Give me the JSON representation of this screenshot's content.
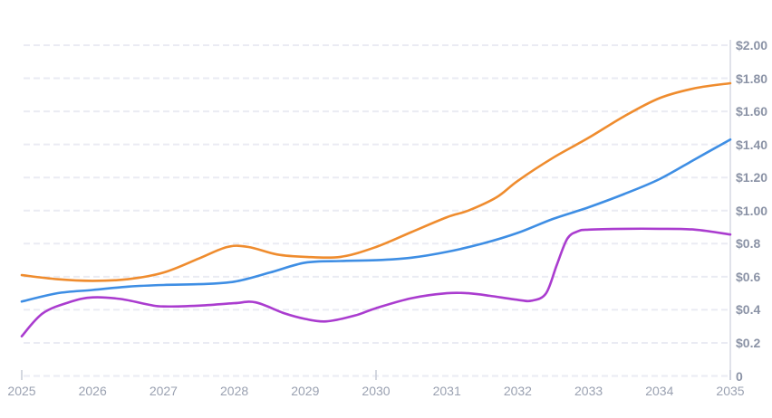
{
  "chart_data": {
    "type": "line",
    "title": "",
    "xlabel": "",
    "ylabel": "",
    "xlim": [
      2025,
      2035
    ],
    "ylim": [
      0,
      2.0
    ],
    "grid": "horizontal-dashed",
    "legend": "none",
    "y_axis_position": "right",
    "x_tick_labels": [
      "2025",
      "2026",
      "2027",
      "2028",
      "2029",
      "2030",
      "2031",
      "2032",
      "2033",
      "2034",
      "2035"
    ],
    "x_tick_values": [
      2025,
      2026,
      2027,
      2028,
      2029,
      2030,
      2031,
      2032,
      2033,
      2034,
      2035
    ],
    "x_axis_marks": [
      2025,
      2030,
      2035
    ],
    "y_ticks": [
      {
        "value": 2.0,
        "label": "$2.00"
      },
      {
        "value": 1.8,
        "label": "$1.80"
      },
      {
        "value": 1.6,
        "label": "$1.60"
      },
      {
        "value": 1.4,
        "label": "$1.40"
      },
      {
        "value": 1.2,
        "label": "$1.20"
      },
      {
        "value": 1.0,
        "label": "$1.00"
      },
      {
        "value": 0.8,
        "label": "$0.8"
      },
      {
        "value": 0.6,
        "label": "$0.6"
      },
      {
        "value": 0.4,
        "label": "$0.4"
      },
      {
        "value": 0.2,
        "label": "$0.2"
      },
      {
        "value": 0.0,
        "label": "0"
      }
    ],
    "colors": {
      "gridline": "#eaebf3",
      "axis_line": "#d6d9e4",
      "tick_mark": "#c6cad6",
      "y_label_text": "#8b93a6",
      "x_label_text": "#9aa1b1"
    },
    "series": [
      {
        "name": "purple-series",
        "color": "#aa3ccf",
        "points": [
          [
            2025,
            0.24
          ],
          [
            2025.3,
            0.38
          ],
          [
            2025.7,
            0.45
          ],
          [
            2026,
            0.475
          ],
          [
            2026.4,
            0.465
          ],
          [
            2026.8,
            0.43
          ],
          [
            2027,
            0.42
          ],
          [
            2027.5,
            0.425
          ],
          [
            2028,
            0.44
          ],
          [
            2028.3,
            0.445
          ],
          [
            2028.7,
            0.38
          ],
          [
            2029,
            0.345
          ],
          [
            2029.3,
            0.33
          ],
          [
            2029.7,
            0.365
          ],
          [
            2030,
            0.41
          ],
          [
            2030.5,
            0.47
          ],
          [
            2031,
            0.5
          ],
          [
            2031.3,
            0.5
          ],
          [
            2031.6,
            0.485
          ],
          [
            2032,
            0.46
          ],
          [
            2032.2,
            0.455
          ],
          [
            2032.4,
            0.5
          ],
          [
            2032.55,
            0.67
          ],
          [
            2032.7,
            0.83
          ],
          [
            2032.85,
            0.875
          ],
          [
            2033,
            0.885
          ],
          [
            2033.5,
            0.89
          ],
          [
            2034,
            0.89
          ],
          [
            2034.5,
            0.885
          ],
          [
            2035,
            0.855
          ]
        ]
      },
      {
        "name": "blue-series",
        "color": "#3e8ee4",
        "points": [
          [
            2025,
            0.45
          ],
          [
            2025.5,
            0.5
          ],
          [
            2026,
            0.52
          ],
          [
            2026.5,
            0.54
          ],
          [
            2027,
            0.55
          ],
          [
            2027.5,
            0.555
          ],
          [
            2028,
            0.57
          ],
          [
            2028.5,
            0.625
          ],
          [
            2029,
            0.685
          ],
          [
            2029.5,
            0.695
          ],
          [
            2030,
            0.7
          ],
          [
            2030.5,
            0.715
          ],
          [
            2031,
            0.75
          ],
          [
            2031.5,
            0.8
          ],
          [
            2032,
            0.865
          ],
          [
            2032.5,
            0.95
          ],
          [
            2033,
            1.02
          ],
          [
            2033.5,
            1.1
          ],
          [
            2034,
            1.19
          ],
          [
            2034.5,
            1.31
          ],
          [
            2035,
            1.43
          ]
        ]
      },
      {
        "name": "orange-series",
        "color": "#ef8c2e",
        "points": [
          [
            2025,
            0.61
          ],
          [
            2025.5,
            0.585
          ],
          [
            2026,
            0.575
          ],
          [
            2026.5,
            0.585
          ],
          [
            2027,
            0.625
          ],
          [
            2027.5,
            0.71
          ],
          [
            2027.9,
            0.78
          ],
          [
            2028.2,
            0.78
          ],
          [
            2028.6,
            0.735
          ],
          [
            2029,
            0.72
          ],
          [
            2029.5,
            0.72
          ],
          [
            2030,
            0.78
          ],
          [
            2030.5,
            0.87
          ],
          [
            2031,
            0.96
          ],
          [
            2031.3,
            1.0
          ],
          [
            2031.7,
            1.08
          ],
          [
            2032,
            1.18
          ],
          [
            2032.5,
            1.32
          ],
          [
            2033,
            1.44
          ],
          [
            2033.5,
            1.57
          ],
          [
            2034,
            1.68
          ],
          [
            2034.5,
            1.74
          ],
          [
            2035,
            1.77
          ]
        ]
      }
    ]
  }
}
